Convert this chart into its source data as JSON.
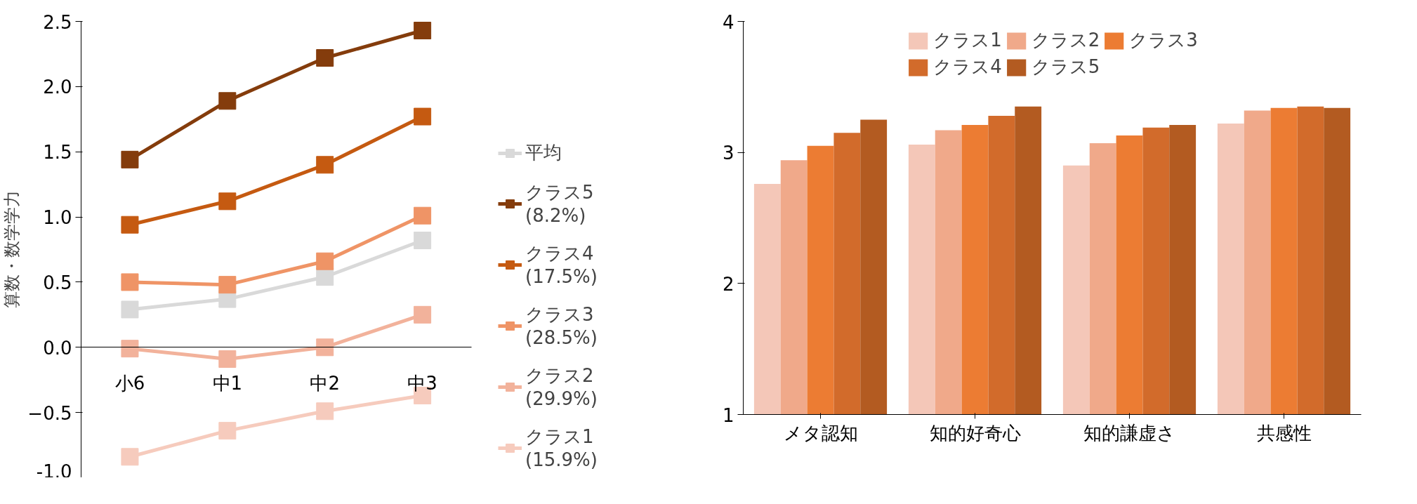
{
  "chart_data": [
    {
      "type": "line",
      "ylabel": "算数・数学学力",
      "categories": [
        "小6",
        "中1",
        "中2",
        "中3"
      ],
      "ylim": [
        -1.0,
        2.5
      ],
      "yticks": [
        {
          "value": -1.0,
          "label": "-1.0"
        },
        -0.5,
        {
          "value": 0.0,
          "label": "0.0"
        },
        0.5,
        {
          "value": 1.0,
          "label": "1.0"
        },
        1.5,
        {
          "value": 2.0,
          "label": "2.0"
        },
        2.5
      ],
      "marker": "square",
      "grid": false,
      "legend": "right",
      "series": [
        {
          "name": "平均",
          "color": "#d9d9d9",
          "values": [
            0.29,
            0.37,
            0.54,
            0.82
          ]
        },
        {
          "name": "クラス5\n(8.2%)",
          "color": "#843c0c",
          "values": [
            1.44,
            1.89,
            2.22,
            2.43
          ]
        },
        {
          "name": "クラス4\n(17.5%)",
          "color": "#c55a11",
          "values": [
            0.94,
            1.12,
            1.4,
            1.77
          ]
        },
        {
          "name": "クラス3\n(28.5%)",
          "color": "#ef9466",
          "values": [
            0.5,
            0.48,
            0.66,
            1.01
          ]
        },
        {
          "name": "クラス2\n(29.9%)",
          "color": "#f2b29b",
          "values": [
            -0.01,
            -0.09,
            0.0,
            0.25
          ]
        },
        {
          "name": "クラス1\n(15.9%)",
          "color": "#f6cbbd",
          "values": [
            -0.84,
            -0.64,
            -0.49,
            -0.37
          ]
        }
      ]
    },
    {
      "type": "bar",
      "categories": [
        "メタ認知",
        "知的好奇心",
        "知的謙虚さ",
        "共感性"
      ],
      "ylim": [
        1,
        4
      ],
      "yticks": [
        1,
        2,
        3,
        4
      ],
      "grid": false,
      "legend": "top",
      "series": [
        {
          "name": "クラス1",
          "color": "#f4c7b8",
          "values": [
            2.76,
            3.06,
            2.9,
            3.22
          ]
        },
        {
          "name": "クラス2",
          "color": "#f0a98a",
          "values": [
            2.94,
            3.17,
            3.07,
            3.32
          ]
        },
        {
          "name": "クラス3",
          "color": "#ec7c33",
          "values": [
            3.05,
            3.21,
            3.13,
            3.34
          ]
        },
        {
          "name": "クラス4",
          "color": "#d26b2b",
          "values": [
            3.15,
            3.28,
            3.19,
            3.35
          ]
        },
        {
          "name": "クラス5",
          "color": "#b35b21",
          "values": [
            3.25,
            3.35,
            3.21,
            3.34
          ]
        }
      ]
    }
  ]
}
